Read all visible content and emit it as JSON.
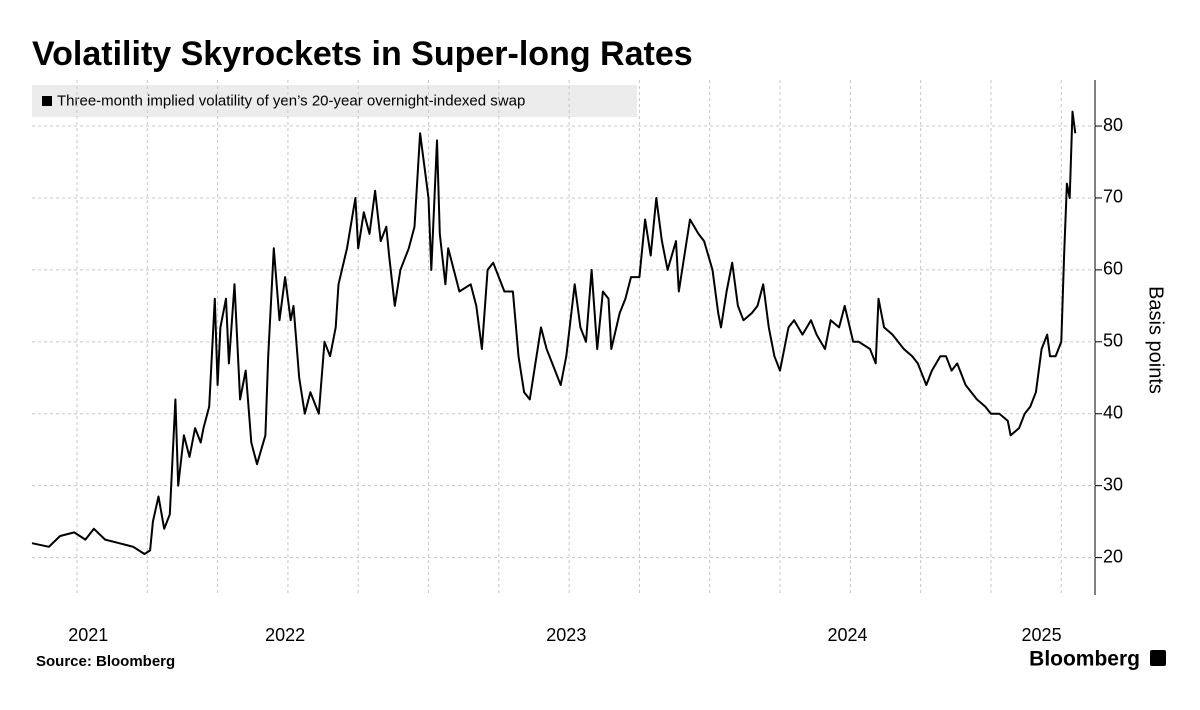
{
  "chart_data": {
    "type": "line",
    "title": "Volatility Skyrockets in Super-long Rates",
    "y_axis_label": "Basis points",
    "source": "Source: Bloomberg",
    "brand": "Bloomberg",
    "legend_position": "top-left",
    "grid": true,
    "xlim": [
      2021.59,
      2025.37
    ],
    "ylim": [
      14.8,
      86.4
    ],
    "yticks": [
      20,
      30,
      40,
      50,
      60,
      70,
      80
    ],
    "xticks": [
      {
        "value": 2021.79,
        "label": "2021"
      },
      {
        "value": 2022.49,
        "label": "2022"
      },
      {
        "value": 2023.49,
        "label": "2023"
      },
      {
        "value": 2024.49,
        "label": "2024"
      },
      {
        "value": 2025.18,
        "label": "2025"
      }
    ],
    "xgrid": [
      2021.75,
      2022,
      2022.25,
      2022.5,
      2022.75,
      2023,
      2023.25,
      2023.5,
      2023.75,
      2024,
      2024.25,
      2024.5,
      2024.75,
      2025,
      2025.25
    ],
    "series": [
      {
        "name": "Three-month implied volatility of yen’s 20-year overnight-indexed swap",
        "color": "#000000",
        "x": [
          2021.59,
          2021.65,
          2021.69,
          2021.74,
          2021.78,
          2021.81,
          2021.85,
          2021.9,
          2021.95,
          2021.99,
          2022.01,
          2022.02,
          2022.04,
          2022.06,
          2022.08,
          2022.1,
          2022.11,
          2022.13,
          2022.15,
          2022.17,
          2022.19,
          2022.2,
          2022.22,
          2022.24,
          2022.25,
          2022.26,
          2022.28,
          2022.29,
          2022.31,
          2022.33,
          2022.35,
          2022.37,
          2022.39,
          2022.42,
          2022.43,
          2022.45,
          2022.47,
          2022.49,
          2022.51,
          2022.52,
          2022.54,
          2022.56,
          2022.58,
          2022.61,
          2022.63,
          2022.65,
          2022.67,
          2022.68,
          2022.71,
          2022.74,
          2022.75,
          2022.77,
          2022.79,
          2022.81,
          2022.83,
          2022.85,
          2022.86,
          2022.88,
          2022.9,
          2022.91,
          2022.93,
          2022.95,
          2022.97,
          2022.99,
          2023.0,
          2023.01,
          2023.03,
          2023.04,
          2023.06,
          2023.07,
          2023.09,
          2023.11,
          2023.15,
          2023.17,
          2023.19,
          2023.21,
          2023.23,
          2023.27,
          2023.3,
          2023.32,
          2023.34,
          2023.36,
          2023.4,
          2023.42,
          2023.45,
          2023.47,
          2023.49,
          2023.52,
          2023.54,
          2023.56,
          2023.58,
          2023.6,
          2023.62,
          2023.64,
          2023.65,
          2023.68,
          2023.7,
          2023.72,
          2023.75,
          2023.77,
          2023.79,
          2023.8,
          2023.81,
          2023.83,
          2023.85,
          2023.88,
          2023.89,
          2023.91,
          2023.93,
          2023.96,
          2023.98,
          2024.01,
          2024.03,
          2024.04,
          2024.06,
          2024.08,
          2024.1,
          2024.12,
          2024.15,
          2024.17,
          2024.19,
          2024.21,
          2024.23,
          2024.25,
          2024.28,
          2024.3,
          2024.33,
          2024.36,
          2024.38,
          2024.41,
          2024.43,
          2024.46,
          2024.48,
          2024.51,
          2024.53,
          2024.57,
          2024.59,
          2024.6,
          2024.62,
          2024.65,
          2024.67,
          2024.69,
          2024.72,
          2024.74,
          2024.77,
          2024.79,
          2024.82,
          2024.84,
          2024.86,
          2024.88,
          2024.91,
          2024.93,
          2024.95,
          2024.98,
          2025.0,
          2025.03,
          2025.06,
          2025.07,
          2025.1,
          2025.12,
          2025.14,
          2025.16,
          2025.18,
          2025.2,
          2025.21,
          2025.23,
          2025.25,
          2025.26,
          2025.27,
          2025.28,
          2025.29,
          2025.3
        ],
        "values": [
          22,
          21.5,
          23,
          23.5,
          22.5,
          24,
          22.5,
          22,
          21.5,
          20.5,
          21,
          25,
          28.5,
          24,
          26,
          42,
          30,
          37,
          34,
          38,
          36,
          38,
          41,
          56,
          44,
          52,
          56,
          47,
          58,
          42,
          46,
          36,
          33,
          37,
          48,
          63,
          53,
          59,
          53,
          55,
          45,
          40,
          43,
          40,
          50,
          48,
          52,
          58,
          63,
          70,
          63,
          68,
          65,
          71,
          64,
          66,
          62,
          55,
          60,
          61,
          63,
          66,
          79,
          73,
          70,
          60,
          78,
          65,
          58,
          63,
          60,
          57,
          58,
          55,
          49,
          60,
          61,
          57,
          57,
          48,
          43,
          42,
          52,
          49,
          46,
          44,
          48,
          58,
          52,
          50,
          60,
          49,
          57,
          56,
          49,
          54,
          56,
          59,
          59,
          67,
          62,
          66,
          70,
          64,
          60,
          64,
          57,
          62,
          67,
          65,
          64,
          60,
          54,
          52,
          57,
          61,
          55,
          53,
          54,
          55,
          58,
          52,
          48,
          46,
          52,
          53,
          51,
          53,
          51,
          49,
          53,
          52,
          55,
          50,
          50,
          49,
          47,
          56,
          52,
          51,
          50,
          49,
          48,
          47,
          44,
          46,
          48,
          48,
          46,
          47,
          44,
          43,
          42,
          41,
          40,
          40,
          39,
          37,
          38,
          40,
          41,
          43,
          49,
          51,
          48,
          48,
          50,
          62,
          72,
          70,
          82,
          79
        ]
      }
    ]
  }
}
